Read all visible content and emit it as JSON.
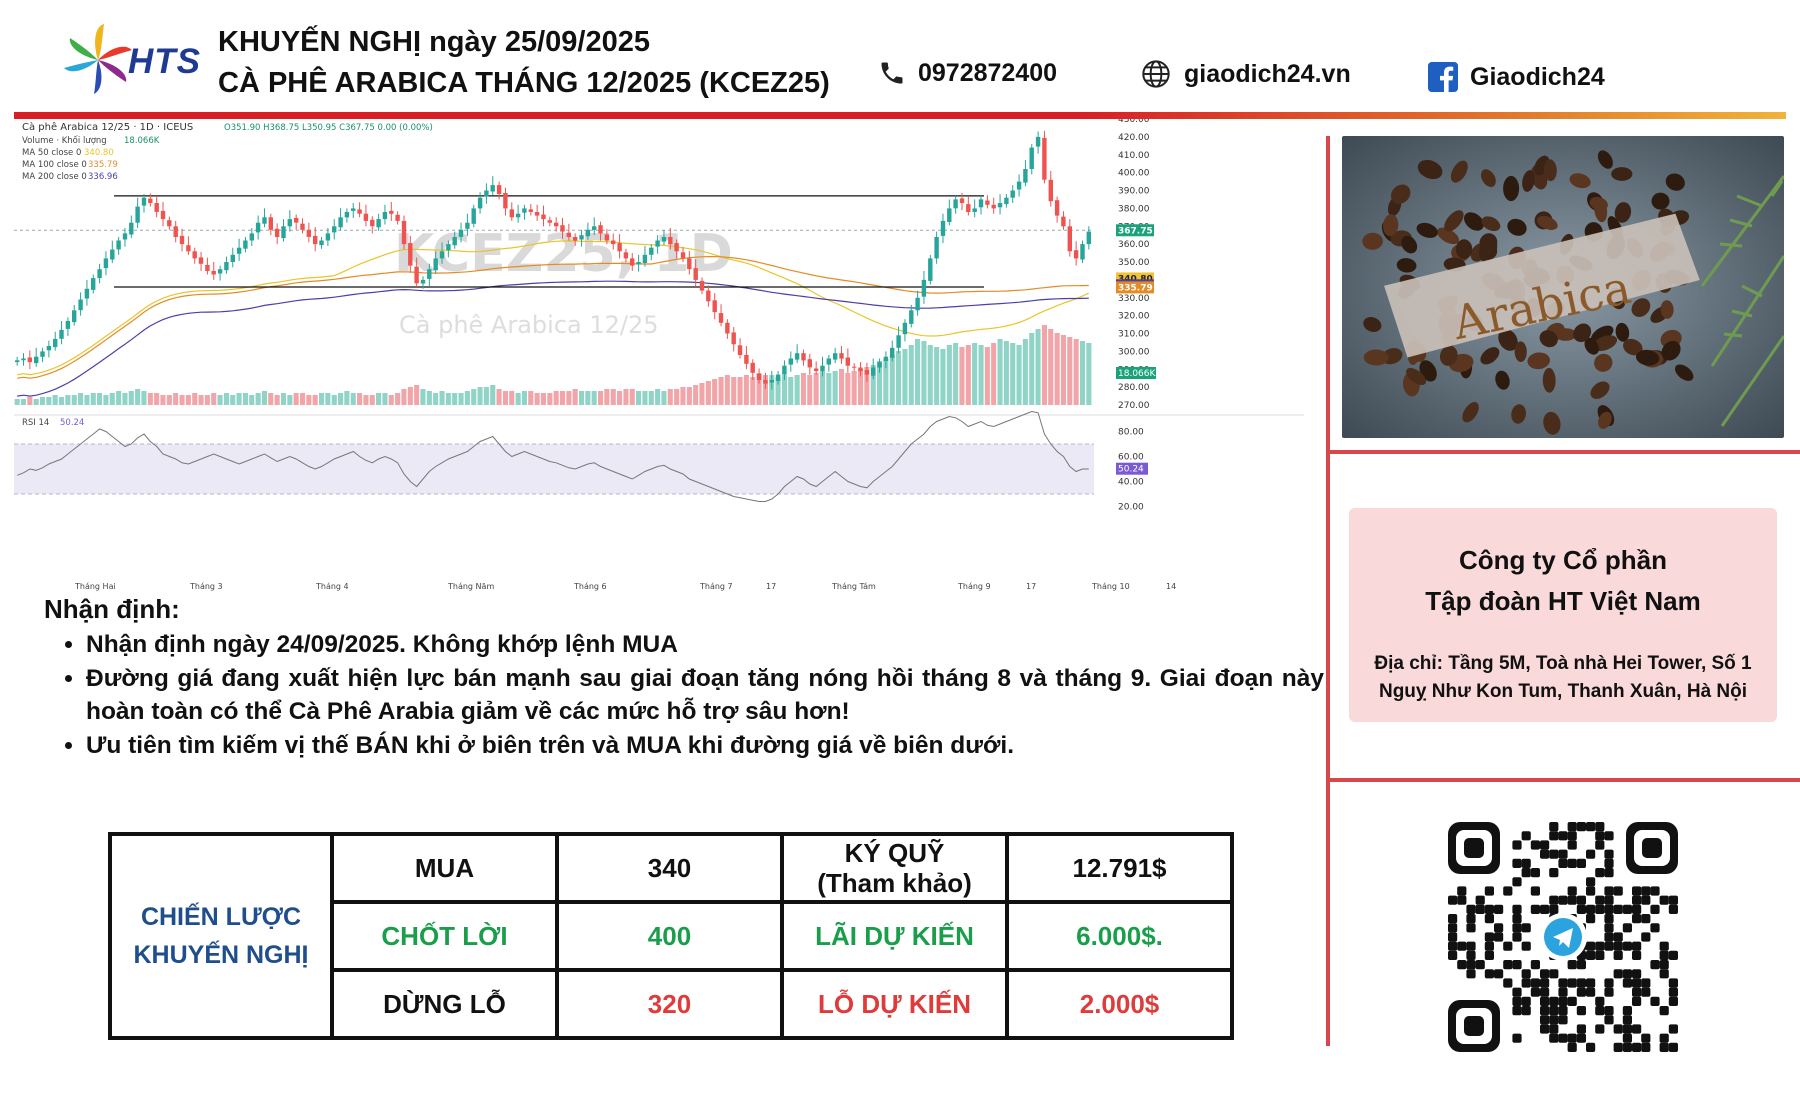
{
  "header": {
    "logo_text": "HTS",
    "title_line1": "KHUYẾN NGHỊ ngày 25/09/2025",
    "title_line2": "CÀ PHÊ ARABICA THÁNG 12/2025 (KCEZ25)",
    "phone": "0972872400",
    "website": "giaodich24.vn",
    "facebook": "Giaodich24"
  },
  "chart_data": {
    "type": "candlestick",
    "title": "Cà phê Arabica 12/25 · 1D · ICEUS",
    "watermark_title": "KCEZ25, 1D",
    "watermark_subtitle": "Cà phê Arabica 12/25",
    "ohlc_text": "O351.90 H368.75 L350.95 C367.75 0.00 (0.00%)",
    "indicators": [
      {
        "label": "Volume · Khối lượng",
        "value": "18.066K"
      },
      {
        "label": "MA 50 close 0",
        "value": "340.80",
        "color": "#e8c52a"
      },
      {
        "label": "MA 100 close 0",
        "value": "335.79",
        "color": "#e58b25"
      },
      {
        "label": "MA 200 close 0",
        "value": "336.96",
        "color": "#4b3fa8"
      }
    ],
    "ylim": [
      270,
      430
    ],
    "y_ticks": [
      "430.00",
      "420.00",
      "410.00",
      "400.00",
      "390.00",
      "380.00",
      "370.00",
      "360.00",
      "350.00",
      "340.00",
      "330.00",
      "320.00",
      "310.00",
      "300.00",
      "290.00",
      "280.00",
      "270.00"
    ],
    "price_labels": [
      {
        "value": 367.75,
        "text": "367.75",
        "color": "#1aa37a"
      },
      {
        "value": 340.8,
        "text": "340.80",
        "color": "#f1c232"
      },
      {
        "value": 336.96,
        "text": "336.96",
        "color": "#4b3fa8"
      },
      {
        "value": 335.79,
        "text": "335.79",
        "color": "#e58b25"
      }
    ],
    "volume_label": "18.066K",
    "x_labels": [
      "Tháng Hai",
      "Tháng 3",
      "Tháng 4",
      "Tháng Năm",
      "Tháng 6",
      "Tháng 7",
      "17",
      "Tháng Tám",
      "Tháng 9",
      "17",
      "Tháng 10",
      "14"
    ],
    "resistance": 387,
    "support": 336,
    "closes": [
      295,
      296,
      294,
      297,
      300,
      303,
      307,
      312,
      317,
      323,
      329,
      335,
      341,
      346,
      352,
      357,
      362,
      366,
      372,
      381,
      386,
      383,
      378,
      374,
      370,
      364,
      360,
      356,
      352,
      349,
      345,
      343,
      346,
      350,
      354,
      358,
      362,
      366,
      372,
      375,
      368,
      364,
      370,
      374,
      372,
      368,
      364,
      360,
      362,
      366,
      370,
      375,
      378,
      380,
      377,
      373,
      370,
      374,
      378,
      377,
      373,
      360,
      348,
      338,
      340,
      346,
      352,
      356,
      360,
      364,
      368,
      372,
      380,
      386,
      390,
      393,
      388,
      380,
      375,
      377,
      380,
      378,
      376,
      374,
      372,
      370,
      367,
      364,
      362,
      365,
      368,
      370,
      366,
      362,
      360,
      356,
      352,
      348,
      350,
      354,
      358,
      362,
      364,
      360,
      356,
      352,
      346,
      340,
      334,
      328,
      322,
      316,
      310,
      304,
      298,
      293,
      288,
      284,
      282,
      284,
      287,
      292,
      296,
      299,
      295,
      291,
      289,
      292,
      296,
      299,
      296,
      292,
      291,
      289,
      287,
      291,
      294,
      297,
      302,
      309,
      316,
      323,
      330,
      340,
      352,
      364,
      373,
      380,
      385,
      383,
      378,
      380,
      385,
      382,
      380,
      383,
      386,
      390,
      395,
      402,
      414,
      420,
      396,
      384,
      376,
      370,
      356,
      352,
      360,
      367
    ],
    "volumes": [
      3,
      3,
      4,
      3,
      4,
      4,
      5,
      4,
      5,
      5,
      6,
      5,
      6,
      6,
      5,
      6,
      7,
      6,
      7,
      8,
      7,
      6,
      6,
      5,
      5,
      6,
      5,
      5,
      6,
      5,
      5,
      6,
      5,
      6,
      5,
      6,
      6,
      5,
      6,
      7,
      6,
      5,
      6,
      5,
      6,
      6,
      5,
      5,
      6,
      6,
      5,
      6,
      7,
      6,
      6,
      5,
      5,
      6,
      6,
      5,
      6,
      8,
      9,
      10,
      8,
      7,
      6,
      7,
      6,
      6,
      6,
      7,
      8,
      9,
      9,
      10,
      8,
      7,
      7,
      6,
      7,
      7,
      6,
      6,
      6,
      7,
      7,
      7,
      8,
      7,
      7,
      7,
      7,
      8,
      8,
      7,
      8,
      8,
      7,
      7,
      7,
      8,
      7,
      8,
      8,
      9,
      9,
      10,
      11,
      12,
      13,
      14,
      15,
      14,
      14,
      15,
      14,
      16,
      15,
      15,
      14,
      15,
      14,
      15,
      16,
      15,
      16,
      17,
      16,
      17,
      18,
      16,
      17,
      18,
      19,
      20,
      22,
      23,
      25,
      27,
      28,
      30,
      33,
      32,
      30,
      29,
      28,
      30,
      31,
      29,
      30,
      31,
      30,
      29,
      31,
      33,
      32,
      31,
      30,
      33,
      36,
      38,
      40,
      38,
      36,
      35,
      34,
      33,
      32,
      31
    ],
    "rsi_label": "RSI 14",
    "rsi_value": "50.24",
    "rsi_ticks": [
      "80.00",
      "60.00",
      "40.00",
      "20.00"
    ],
    "rsi": [
      45,
      47,
      50,
      49,
      51,
      54,
      56,
      58,
      62,
      66,
      70,
      74,
      78,
      82,
      80,
      76,
      72,
      68,
      70,
      75,
      78,
      72,
      68,
      62,
      60,
      58,
      55,
      54,
      56,
      58,
      60,
      62,
      60,
      58,
      56,
      54,
      56,
      58,
      60,
      62,
      59,
      56,
      58,
      60,
      58,
      55,
      52,
      50,
      52,
      55,
      58,
      60,
      62,
      64,
      60,
      57,
      55,
      58,
      60,
      58,
      55,
      46,
      40,
      36,
      42,
      48,
      52,
      55,
      58,
      60,
      62,
      64,
      68,
      72,
      74,
      76,
      70,
      64,
      60,
      62,
      64,
      62,
      60,
      58,
      56,
      55,
      53,
      51,
      50,
      52,
      54,
      55,
      52,
      50,
      48,
      46,
      44,
      42,
      45,
      48,
      50,
      52,
      53,
      50,
      48,
      46,
      42,
      40,
      38,
      36,
      34,
      32,
      30,
      28,
      27,
      26,
      25,
      24,
      24,
      26,
      30,
      36,
      40,
      44,
      42,
      38,
      36,
      40,
      44,
      48,
      44,
      40,
      38,
      36,
      35,
      40,
      44,
      48,
      52,
      58,
      64,
      70,
      74,
      78,
      84,
      88,
      90,
      92,
      91,
      88,
      84,
      86,
      88,
      85,
      84,
      86,
      88,
      90,
      92,
      94,
      96,
      95,
      78,
      70,
      64,
      60,
      52,
      48,
      50,
      50
    ]
  },
  "analysis": {
    "title": "Nhận định:",
    "bullets": [
      "Nhận định ngày 24/09/2025. Không khớp lệnh MUA",
      "Đường giá đang xuất hiện lực bán mạnh sau giai đoạn tăng nóng hồi tháng 8 và tháng 9. Giai đoạn này hoàn toàn có thể Cà Phê Arabia giảm về các mức hỗ trợ sâu hơn!",
      "Ưu tiên tìm kiếm vị thế BÁN khi ở biên trên và MUA khi đường giá về biên dưới."
    ]
  },
  "strategy": {
    "label_line1": "CHIẾN LƯỢC",
    "label_line2": "KHUYẾN NGHỊ",
    "rows": [
      {
        "action": "MUA",
        "price": "340",
        "metric": "KÝ QUỸ",
        "metric_sub": "(Tham khảo)",
        "amount": "12.791$",
        "color": "black"
      },
      {
        "action": "CHỐT LỜI",
        "price": "400",
        "metric": "LÃI DỰ KIẾN",
        "metric_sub": "",
        "amount": "6.000$.",
        "color": "green"
      },
      {
        "action": "DỪNG LỖ",
        "price": "320",
        "metric": "LỖ DỰ KIẾN",
        "metric_sub": "",
        "amount": "2.000$",
        "color": "red"
      }
    ]
  },
  "image_label": "Arabica",
  "company": {
    "name_line1": "Công ty Cổ phần",
    "name_line2": "Tập đoàn HT Việt Nam",
    "address": "Địa chỉ: Tầng 5M, Toà nhà Hei Tower, Số 1 Nguỵ Như Kon Tum, Thanh Xuân, Hà Nội"
  },
  "colors": {
    "accent_red": "#d81f26",
    "brand_blue": "#1f3a93",
    "candle_up": "#26a69a",
    "candle_down": "#ef5350"
  }
}
